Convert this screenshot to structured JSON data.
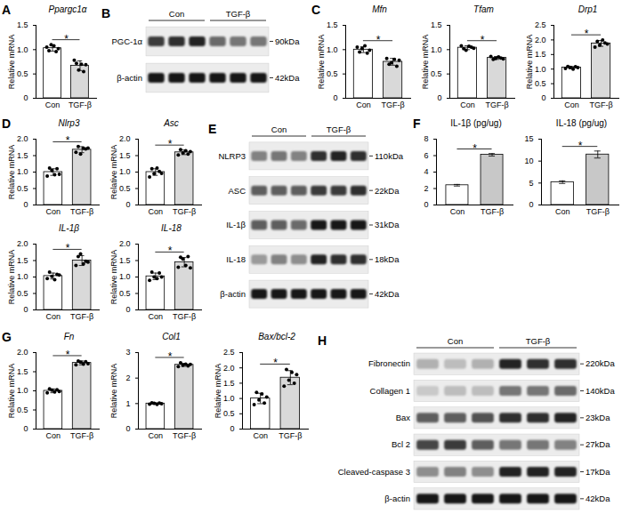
{
  "chart_data": [
    {
      "panel": "A",
      "type": "bar",
      "title": "Ppargc1α",
      "ylabel": "Relative mRNA",
      "categories": [
        "Con",
        "TGF-β"
      ],
      "values": [
        1.03,
        0.67
      ],
      "errors": [
        0.06,
        0.1
      ],
      "points": [
        [
          1.05,
          0.98,
          1.1,
          1.08,
          0.96,
          1.02
        ],
        [
          0.78,
          0.72,
          0.58,
          0.7,
          0.55,
          0.69
        ]
      ],
      "colors": [
        "#ffffff",
        "#d9d9d9"
      ],
      "ylim": [
        0,
        1.5
      ],
      "yticks": [
        0,
        0.5,
        {
          "value": 1,
          "label": "1.0"
        },
        1.5
      ],
      "significance": "*"
    },
    {
      "panel": "B",
      "type": "blot",
      "groups": [
        {
          "name": "Con",
          "lanes": 3
        },
        {
          "name": "TGF-β",
          "lanes": 3
        }
      ],
      "rows": [
        {
          "name": "PGC-1α",
          "size": "90kDa",
          "intensity": [
            0.75,
            0.8,
            0.85,
            0.55,
            0.5,
            0.5
          ]
        },
        {
          "name": "β-actin",
          "size": "42kDa",
          "intensity": [
            0.9,
            0.9,
            0.9,
            0.9,
            0.9,
            0.9
          ]
        }
      ]
    },
    {
      "panel": "C",
      "type": "bar",
      "title": "Mfn",
      "ylabel": "Relative mRNA",
      "categories": [
        "Con",
        "TGF-β"
      ],
      "values": [
        1.0,
        0.75
      ],
      "errors": [
        0.06,
        0.07
      ],
      "points": [
        [
          1.05,
          0.95,
          1.02,
          1.08,
          0.93,
          0.99
        ],
        [
          0.82,
          0.7,
          0.73,
          0.8,
          0.66,
          0.78
        ]
      ],
      "colors": [
        "#ffffff",
        "#d9d9d9"
      ],
      "ylim": [
        0,
        1.5
      ],
      "yticks": [
        0,
        0.5,
        {
          "value": 1,
          "label": "1.0"
        },
        1.5
      ],
      "significance": "*"
    },
    {
      "type": "bar",
      "title": "Tfam",
      "ylabel": "Relative mRNA",
      "categories": [
        "Con",
        "TGF-β"
      ],
      "values": [
        1.04,
        0.83
      ],
      "errors": [
        0.04,
        0.03
      ],
      "points": [
        [
          1.08,
          1.02,
          0.99,
          1.07,
          1.05,
          1.03
        ],
        [
          0.86,
          0.8,
          0.82,
          0.85,
          0.83,
          0.81
        ]
      ],
      "colors": [
        "#ffffff",
        "#d9d9d9"
      ],
      "ylim": [
        0,
        1.5
      ],
      "yticks": [
        0,
        0.5,
        {
          "value": 1,
          "label": "1.0"
        },
        1.5
      ],
      "significance": "*"
    },
    {
      "type": "bar",
      "title": "Drp1",
      "ylabel": "Relative mRNA",
      "categories": [
        "Con",
        "TGF-β"
      ],
      "values": [
        1.05,
        1.88
      ],
      "errors": [
        0.04,
        0.1
      ],
      "points": [
        [
          1.02,
          1.09,
          1.06,
          1.0,
          1.08,
          1.05
        ],
        [
          1.75,
          1.95,
          1.82,
          2.0,
          1.9,
          1.86
        ]
      ],
      "colors": [
        "#ffffff",
        "#d9d9d9"
      ],
      "ylim": [
        0,
        2.5
      ],
      "yticks": [
        0,
        0.5,
        {
          "value": 1,
          "label": "1.0"
        },
        1.5,
        {
          "value": 2,
          "label": "2.0"
        },
        2.5
      ],
      "significance": "*"
    },
    {
      "panel": "D",
      "type": "bar",
      "title": "Nlrp3",
      "ylabel": "Relative mRNA",
      "categories": [
        "Con",
        "TGF-β"
      ],
      "values": [
        1.0,
        1.68
      ],
      "errors": [
        0.1,
        0.09
      ],
      "points": [
        [
          0.88,
          1.12,
          1.05,
          0.92,
          1.1,
          0.93
        ],
        [
          1.6,
          1.78,
          1.55,
          1.72,
          1.7,
          1.73
        ]
      ],
      "colors": [
        "#ffffff",
        "#d9d9d9"
      ],
      "ylim": [
        0,
        2
      ],
      "yticks": [
        0,
        0.5,
        {
          "value": 1,
          "label": "1.0"
        },
        1.5,
        {
          "value": 2,
          "label": "2.0"
        }
      ],
      "significance": "*"
    },
    {
      "type": "bar",
      "title": "Asc",
      "ylabel": "Relative mRNA",
      "categories": [
        "Con",
        "TGF-β"
      ],
      "values": [
        1.0,
        1.6
      ],
      "errors": [
        0.1,
        0.07
      ],
      "points": [
        [
          0.85,
          1.1,
          0.95,
          1.12,
          1.02,
          0.96
        ],
        [
          1.52,
          1.68,
          1.58,
          1.65,
          1.55,
          1.62
        ]
      ],
      "colors": [
        "#ffffff",
        "#d9d9d9"
      ],
      "ylim": [
        0,
        2
      ],
      "yticks": [
        0,
        0.5,
        {
          "value": 1,
          "label": "1.0"
        },
        1.5,
        {
          "value": 2,
          "label": "2.0"
        }
      ],
      "significance": "*"
    },
    {
      "type": "bar",
      "title": "IL-1β",
      "ylabel": "Relative mRNA",
      "categories": [
        "Con",
        "TGF-β"
      ],
      "values": [
        1.03,
        1.5
      ],
      "errors": [
        0.09,
        0.15
      ],
      "points": [
        [
          0.95,
          1.15,
          1.02,
          0.92,
          1.08,
          1.06
        ],
        [
          1.35,
          1.62,
          1.7,
          1.4,
          1.48,
          1.45
        ]
      ],
      "colors": [
        "#ffffff",
        "#d9d9d9"
      ],
      "ylim": [
        0,
        2
      ],
      "yticks": [
        0,
        0.5,
        {
          "value": 1,
          "label": "1.0"
        },
        1.5,
        {
          "value": 2,
          "label": "2.0"
        }
      ],
      "significance": "*"
    },
    {
      "type": "bar",
      "title": "IL-18",
      "ylabel": "Relative mRNA",
      "categories": [
        "Con",
        "TGF-β"
      ],
      "values": [
        1.02,
        1.45
      ],
      "errors": [
        0.1,
        0.14
      ],
      "points": [
        [
          0.9,
          1.15,
          1.0,
          0.95,
          1.12,
          1.0
        ],
        [
          1.3,
          1.6,
          1.55,
          1.35,
          1.62,
          1.28
        ]
      ],
      "colors": [
        "#ffffff",
        "#d9d9d9"
      ],
      "ylim": [
        0,
        2
      ],
      "yticks": [
        0,
        0.5,
        {
          "value": 1,
          "label": "1.0"
        },
        1.5,
        {
          "value": 2,
          "label": "2.0"
        }
      ],
      "significance": "*"
    },
    {
      "panel": "E",
      "type": "blot",
      "groups": [
        {
          "name": "Con",
          "lanes": 3
        },
        {
          "name": "TGF-β",
          "lanes": 3
        }
      ],
      "rows": [
        {
          "name": "NLRP3",
          "size": "110kDa",
          "intensity": [
            0.45,
            0.5,
            0.45,
            0.8,
            0.85,
            0.8
          ]
        },
        {
          "name": "ASC",
          "size": "22kDa",
          "intensity": [
            0.6,
            0.6,
            0.6,
            0.75,
            0.75,
            0.8
          ]
        },
        {
          "name": "IL-1β",
          "size": "31kDa",
          "intensity": [
            0.6,
            0.6,
            0.55,
            0.9,
            0.9,
            0.9
          ]
        },
        {
          "name": "IL-18",
          "size": "18kDa",
          "intensity": [
            0.35,
            0.45,
            0.4,
            0.85,
            0.8,
            0.8
          ]
        },
        {
          "name": "β-actin",
          "size": "42kDa",
          "intensity": [
            0.9,
            0.9,
            0.9,
            0.9,
            0.9,
            0.9
          ]
        }
      ]
    },
    {
      "panel": "F",
      "type": "bar",
      "title": "IL-1β (pg/ug)",
      "categories": [
        "Con",
        "TGF-β"
      ],
      "values": [
        2.4,
        6.1
      ],
      "errors": [
        0.1,
        0.15
      ],
      "colors": [
        "#ffffff",
        "#c8c8c8"
      ],
      "ylim": [
        0,
        8
      ],
      "yticks": [
        0,
        2,
        4,
        6,
        8
      ],
      "significance": "*"
    },
    {
      "type": "bar",
      "title": "IL-18 (pg/ug)",
      "categories": [
        "Con",
        "TGF-β"
      ],
      "values": [
        5.2,
        11.5
      ],
      "errors": [
        0.3,
        0.8
      ],
      "colors": [
        "#ffffff",
        "#c8c8c8"
      ],
      "ylim": [
        0,
        15
      ],
      "yticks": [
        0,
        5,
        10,
        15
      ],
      "significance": "*"
    },
    {
      "panel": "G",
      "type": "bar",
      "title": "Fn",
      "ylabel": "Relative mRNA",
      "categories": [
        "Con",
        "TGF-β"
      ],
      "values": [
        1.0,
        1.73
      ],
      "errors": [
        0.05,
        0.05
      ],
      "points": [
        [
          0.95,
          1.05,
          1.02,
          0.97,
          1.03,
          0.98
        ],
        [
          1.68,
          1.78,
          1.75,
          1.7,
          1.76,
          1.71
        ]
      ],
      "colors": [
        "#ffffff",
        "#d9d9d9"
      ],
      "ylim": [
        0,
        2
      ],
      "yticks": [
        0,
        0.5,
        {
          "value": 1,
          "label": "1.0"
        },
        1.5,
        {
          "value": 2,
          "label": "2.0"
        }
      ],
      "significance": "*"
    },
    {
      "type": "bar",
      "title": "Col1",
      "ylabel": "Relative mRNA",
      "categories": [
        "Con",
        "TGF-β"
      ],
      "values": [
        1.0,
        2.52
      ],
      "errors": [
        0.03,
        0.06
      ],
      "points": [
        [
          0.98,
          1.03,
          1.01,
          0.97,
          1.02,
          0.99
        ],
        [
          2.45,
          2.6,
          2.5,
          2.55,
          2.48,
          2.54
        ]
      ],
      "colors": [
        "#ffffff",
        "#d9d9d9"
      ],
      "ylim": [
        0,
        3
      ],
      "yticks": [
        0,
        1,
        2,
        3
      ],
      "significance": "*"
    },
    {
      "type": "bar",
      "title": "Bax/bcl-2",
      "ylabel": "Relative mRNA",
      "categories": [
        "Con",
        "TGF-β"
      ],
      "values": [
        1.0,
        1.68
      ],
      "errors": [
        0.17,
        0.23
      ],
      "points": [
        [
          0.8,
          1.2,
          0.95,
          1.15,
          0.85,
          1.05
        ],
        [
          1.4,
          1.95,
          1.6,
          1.85,
          1.5,
          1.78
        ]
      ],
      "colors": [
        "#ffffff",
        "#d9d9d9"
      ],
      "ylim": [
        0,
        2.5
      ],
      "yticks": [
        0,
        0.5,
        {
          "value": 1,
          "label": "1.0"
        },
        1.5,
        {
          "value": 2,
          "label": "2.0"
        },
        2.5
      ],
      "significance": "*"
    },
    {
      "panel": "H",
      "type": "blot",
      "groups": [
        {
          "name": "Con",
          "lanes": 3
        },
        {
          "name": "TGF-β",
          "lanes": 3
        }
      ],
      "rows": [
        {
          "name": "Fibronectin",
          "size": "220kDa",
          "intensity": [
            0.25,
            0.2,
            0.25,
            0.85,
            0.8,
            0.8
          ]
        },
        {
          "name": "Collagen 1",
          "size": "140kDa",
          "intensity": [
            0.15,
            0.2,
            0.2,
            0.5,
            0.5,
            0.55
          ]
        },
        {
          "name": "Bax",
          "size": "23kDa",
          "intensity": [
            0.6,
            0.6,
            0.65,
            0.8,
            0.8,
            0.85
          ]
        },
        {
          "name": "Bcl 2",
          "size": "27kDa",
          "intensity": [
            0.7,
            0.75,
            0.6,
            0.5,
            0.5,
            0.45
          ]
        },
        {
          "name": "Cleaved-caspase 3",
          "size": "17kDa",
          "intensity": [
            0.4,
            0.45,
            0.4,
            0.85,
            0.85,
            0.85
          ]
        },
        {
          "name": "β-actin",
          "size": "42kDa",
          "intensity": [
            0.9,
            0.9,
            0.9,
            0.9,
            0.9,
            0.9
          ]
        }
      ]
    }
  ]
}
